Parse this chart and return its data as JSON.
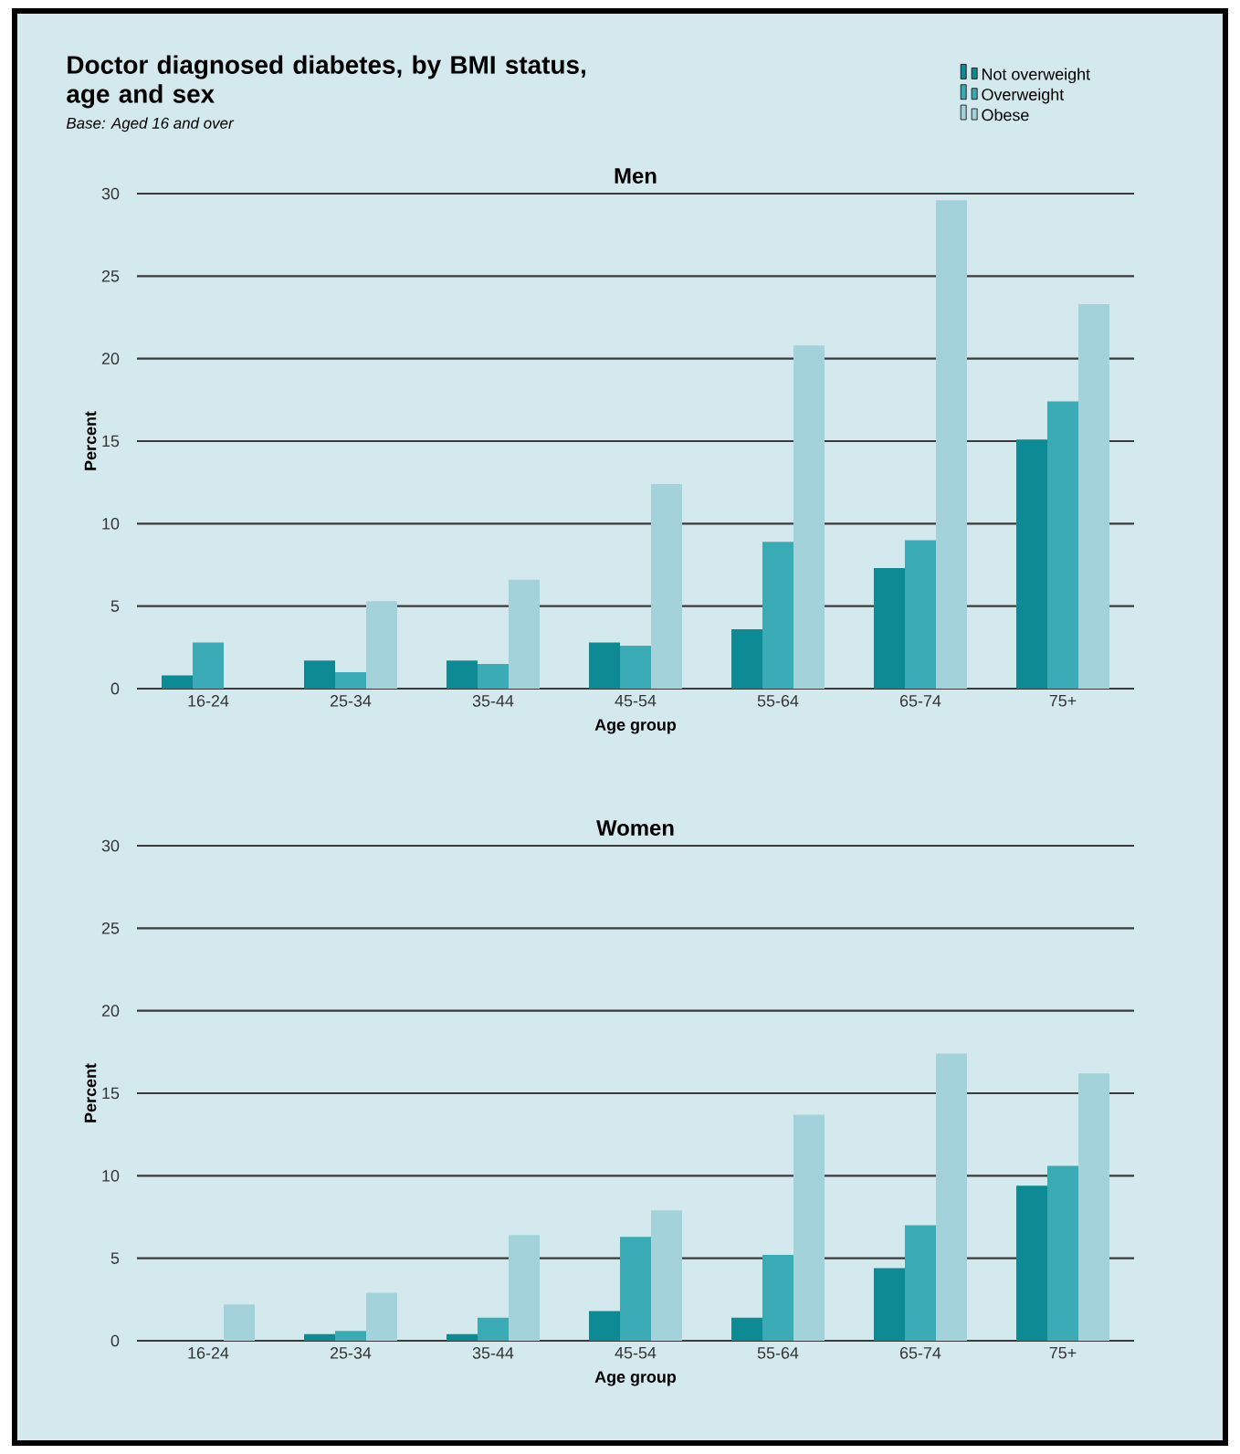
{
  "chart_data": [
    {
      "type": "bar",
      "title": "Men",
      "annotations": [
        "Doctor diagnosed diabetes, by BMI status, age and sex",
        "Base: Aged 16 and over"
      ],
      "xlabel": "Age group",
      "ylabel": "Percent",
      "categories": [
        "16-24",
        "25-34",
        "35-44",
        "45-54",
        "55-64",
        "65-74",
        "75+"
      ],
      "series": [
        {
          "name": "Not overweight",
          "color": "#0d8a94",
          "values": [
            0.8,
            1.7,
            1.7,
            2.8,
            3.6,
            7.3,
            15.1
          ]
        },
        {
          "name": "Overweight",
          "color": "#3aabb5",
          "values": [
            2.8,
            1.0,
            1.5,
            2.6,
            8.9,
            9.0,
            17.4
          ]
        },
        {
          "name": "Obese",
          "color": "#a3d2da",
          "values": [
            null,
            5.3,
            6.6,
            12.4,
            20.8,
            29.6,
            23.3
          ]
        }
      ],
      "ylim": [
        0,
        30
      ],
      "yticks": [
        0,
        5,
        10,
        15,
        20,
        25,
        30
      ],
      "grid": "y",
      "legend": "top right"
    },
    {
      "type": "bar",
      "title": "Women",
      "xlabel": "Age group",
      "ylabel": "Percent",
      "categories": [
        "16-24",
        "25-34",
        "35-44",
        "45-54",
        "55-64",
        "65-74",
        "75+"
      ],
      "series": [
        {
          "color": "#0d8a94",
          "values": [
            0,
            0.4,
            0.4,
            1.8,
            1.4,
            4.4,
            9.4
          ]
        },
        {
          "color": "#3aabb5",
          "values": [
            0,
            0.6,
            1.4,
            6.3,
            5.2,
            7.0,
            10.6
          ]
        },
        {
          "color": "#a3d2da",
          "values": [
            2.2,
            2.9,
            6.4,
            7.9,
            13.7,
            17.4,
            16.2
          ]
        }
      ],
      "ylim": [
        0,
        30
      ],
      "yticks": [
        0,
        5,
        10,
        15,
        20,
        25,
        30
      ],
      "grid": "y"
    }
  ]
}
